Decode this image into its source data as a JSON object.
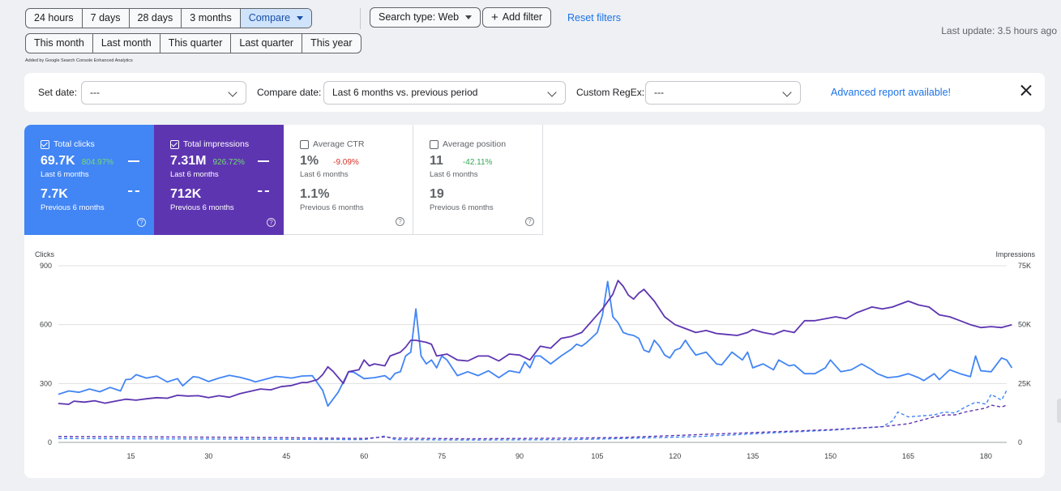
{
  "date_ranges": [
    "24 hours",
    "7 days",
    "28 days",
    "3 months"
  ],
  "compare_label": "Compare",
  "compare_ranges": [
    "This month",
    "Last month",
    "This quarter",
    "Last quarter",
    "This year"
  ],
  "search_type": "Search type: Web",
  "add_filter": "Add filter",
  "reset_filters": "Reset filters",
  "note": "Added by Google Search Console Enhanced Analytics",
  "last_update": "Last update: 3.5 hours ago",
  "filters": {
    "set_date_label": "Set date:",
    "set_date_value": "---",
    "compare_date_label": "Compare date:",
    "compare_date_value": "Last 6 months vs. previous period",
    "regex_label": "Custom RegEx:",
    "regex_value": "---",
    "advanced": "Advanced report available!"
  },
  "metrics": {
    "clicks": {
      "title": "Total clicks",
      "value": "69.7K",
      "pct": "804.97%",
      "period": "Last 6 months",
      "prev_value": "7.7K",
      "prev_period": "Previous 6 months"
    },
    "impressions": {
      "title": "Total impressions",
      "value": "7.31M",
      "pct": "926.72%",
      "period": "Last 6 months",
      "prev_value": "712K",
      "prev_period": "Previous 6 months"
    },
    "ctr": {
      "title": "Average CTR",
      "value": "1%",
      "pct": "-9.09%",
      "period": "Last 6 months",
      "prev_value": "1.1%",
      "prev_period": "Previous 6 months"
    },
    "position": {
      "title": "Average position",
      "value": "11",
      "pct": "-42.11%",
      "period": "Last 6 months",
      "prev_value": "19",
      "prev_period": "Previous 6 months"
    }
  },
  "colors": {
    "clicks": "#4285f4",
    "impressions": "#5e35b1",
    "accent": "#1a73e8"
  },
  "chart_data": {
    "type": "line",
    "ylabel_left": "Clicks",
    "ylabel_right": "Impressions",
    "y_ticks_left": [
      "0",
      "300",
      "600",
      "900"
    ],
    "y_ticks_right": [
      "0",
      "25K",
      "50K",
      "75K"
    ],
    "x_ticks": [
      "15",
      "30",
      "45",
      "60",
      "75",
      "90",
      "105",
      "120",
      "135",
      "150",
      "165",
      "180"
    ],
    "ylim_left": [
      0,
      900
    ],
    "ylim_right": [
      0,
      75000
    ],
    "xlim": [
      1,
      184
    ],
    "grid": true,
    "series": [
      {
        "name": "Clicks (Last 6 months)",
        "axis": "left",
        "style": "solid",
        "points": [
          [
            1,
            245
          ],
          [
            3,
            262
          ],
          [
            5,
            255
          ],
          [
            7,
            272
          ],
          [
            9,
            258
          ],
          [
            11,
            280
          ],
          [
            13,
            262
          ],
          [
            14,
            320
          ],
          [
            15,
            322
          ],
          [
            16,
            345
          ],
          [
            18,
            328
          ],
          [
            20,
            338
          ],
          [
            22,
            308
          ],
          [
            24,
            325
          ],
          [
            25,
            288
          ],
          [
            27,
            335
          ],
          [
            28,
            332
          ],
          [
            30,
            310
          ],
          [
            32,
            328
          ],
          [
            34,
            342
          ],
          [
            36,
            332
          ],
          [
            38,
            318
          ],
          [
            39,
            308
          ],
          [
            41,
            322
          ],
          [
            43,
            336
          ],
          [
            44,
            334
          ],
          [
            46,
            328
          ],
          [
            48,
            338
          ],
          [
            50,
            340
          ],
          [
            52,
            265
          ],
          [
            53,
            185
          ],
          [
            55,
            255
          ],
          [
            57,
            360
          ],
          [
            58,
            358
          ],
          [
            60,
            325
          ],
          [
            62,
            330
          ],
          [
            64,
            340
          ],
          [
            65,
            320
          ],
          [
            66,
            352
          ],
          [
            67,
            360
          ],
          [
            68,
            440
          ],
          [
            69,
            460
          ],
          [
            70,
            680
          ],
          [
            71,
            440
          ],
          [
            72,
            400
          ],
          [
            73,
            420
          ],
          [
            74,
            380
          ],
          [
            75,
            440
          ],
          [
            76,
            420
          ],
          [
            77,
            380
          ],
          [
            78,
            340
          ],
          [
            80,
            360
          ],
          [
            82,
            340
          ],
          [
            84,
            365
          ],
          [
            86,
            330
          ],
          [
            88,
            365
          ],
          [
            90,
            355
          ],
          [
            91,
            410
          ],
          [
            92,
            380
          ],
          [
            93,
            440
          ],
          [
            94,
            440
          ],
          [
            96,
            400
          ],
          [
            98,
            440
          ],
          [
            100,
            475
          ],
          [
            101,
            500
          ],
          [
            102,
            490
          ],
          [
            103,
            510
          ],
          [
            105,
            560
          ],
          [
            106,
            650
          ],
          [
            107,
            820
          ],
          [
            108,
            640
          ],
          [
            109,
            610
          ],
          [
            110,
            560
          ],
          [
            111,
            550
          ],
          [
            112,
            545
          ],
          [
            113,
            530
          ],
          [
            114,
            470
          ],
          [
            115,
            460
          ],
          [
            116,
            520
          ],
          [
            117,
            490
          ],
          [
            118,
            445
          ],
          [
            119,
            430
          ],
          [
            120,
            470
          ],
          [
            121,
            480
          ],
          [
            122,
            520
          ],
          [
            123,
            480
          ],
          [
            124,
            445
          ],
          [
            126,
            460
          ],
          [
            128,
            400
          ],
          [
            129,
            395
          ],
          [
            131,
            460
          ],
          [
            133,
            420
          ],
          [
            134,
            460
          ],
          [
            135,
            380
          ],
          [
            137,
            400
          ],
          [
            139,
            370
          ],
          [
            140,
            420
          ],
          [
            142,
            390
          ],
          [
            143,
            395
          ],
          [
            145,
            350
          ],
          [
            147,
            350
          ],
          [
            149,
            380
          ],
          [
            150,
            420
          ],
          [
            152,
            360
          ],
          [
            154,
            370
          ],
          [
            156,
            400
          ],
          [
            158,
            370
          ],
          [
            159,
            350
          ],
          [
            161,
            330
          ],
          [
            163,
            335
          ],
          [
            165,
            350
          ],
          [
            167,
            330
          ],
          [
            168,
            315
          ],
          [
            170,
            350
          ],
          [
            171,
            320
          ],
          [
            173,
            370
          ],
          [
            175,
            350
          ],
          [
            177,
            335
          ],
          [
            178,
            440
          ],
          [
            179,
            365
          ],
          [
            181,
            360
          ],
          [
            183,
            430
          ],
          [
            184,
            420
          ],
          [
            185,
            380
          ]
        ]
      },
      {
        "name": "Impressions (Last 6 months)",
        "axis": "left",
        "style": "solid",
        "points": [
          [
            1,
            198
          ],
          [
            3,
            194
          ],
          [
            4,
            210
          ],
          [
            6,
            205
          ],
          [
            8,
            212
          ],
          [
            10,
            200
          ],
          [
            12,
            210
          ],
          [
            14,
            220
          ],
          [
            16,
            215
          ],
          [
            18,
            222
          ],
          [
            20,
            228
          ],
          [
            22,
            225
          ],
          [
            24,
            240
          ],
          [
            26,
            236
          ],
          [
            28,
            238
          ],
          [
            30,
            228
          ],
          [
            32,
            238
          ],
          [
            34,
            230
          ],
          [
            36,
            248
          ],
          [
            38,
            260
          ],
          [
            40,
            272
          ],
          [
            42,
            268
          ],
          [
            44,
            284
          ],
          [
            46,
            290
          ],
          [
            48,
            305
          ],
          [
            49,
            305
          ],
          [
            51,
            320
          ],
          [
            52,
            345
          ],
          [
            53,
            385
          ],
          [
            54,
            362
          ],
          [
            56,
            300
          ],
          [
            57,
            360
          ],
          [
            59,
            370
          ],
          [
            60,
            420
          ],
          [
            61,
            390
          ],
          [
            62,
            400
          ],
          [
            64,
            390
          ],
          [
            65,
            440
          ],
          [
            67,
            460
          ],
          [
            68,
            485
          ],
          [
            69,
            520
          ],
          [
            70,
            520
          ],
          [
            72,
            510
          ],
          [
            73,
            500
          ],
          [
            74,
            440
          ],
          [
            76,
            450
          ],
          [
            78,
            420
          ],
          [
            80,
            415
          ],
          [
            82,
            440
          ],
          [
            84,
            440
          ],
          [
            86,
            415
          ],
          [
            88,
            450
          ],
          [
            90,
            445
          ],
          [
            92,
            420
          ],
          [
            94,
            490
          ],
          [
            96,
            480
          ],
          [
            98,
            530
          ],
          [
            100,
            540
          ],
          [
            102,
            560
          ],
          [
            104,
            620
          ],
          [
            106,
            680
          ],
          [
            108,
            755
          ],
          [
            109,
            825
          ],
          [
            110,
            795
          ],
          [
            111,
            750
          ],
          [
            112,
            730
          ],
          [
            113,
            760
          ],
          [
            114,
            780
          ],
          [
            116,
            720
          ],
          [
            118,
            640
          ],
          [
            120,
            600
          ],
          [
            122,
            580
          ],
          [
            124,
            560
          ],
          [
            126,
            570
          ],
          [
            128,
            555
          ],
          [
            130,
            550
          ],
          [
            132,
            545
          ],
          [
            134,
            560
          ],
          [
            135,
            575
          ],
          [
            137,
            560
          ],
          [
            139,
            550
          ],
          [
            141,
            570
          ],
          [
            143,
            560
          ],
          [
            145,
            620
          ],
          [
            147,
            620
          ],
          [
            149,
            630
          ],
          [
            151,
            640
          ],
          [
            153,
            630
          ],
          [
            155,
            660
          ],
          [
            157,
            680
          ],
          [
            158,
            690
          ],
          [
            160,
            680
          ],
          [
            162,
            690
          ],
          [
            163,
            700
          ],
          [
            165,
            720
          ],
          [
            167,
            700
          ],
          [
            169,
            690
          ],
          [
            171,
            650
          ],
          [
            173,
            640
          ],
          [
            175,
            620
          ],
          [
            177,
            600
          ],
          [
            179,
            585
          ],
          [
            181,
            590
          ],
          [
            183,
            585
          ],
          [
            185,
            600
          ]
        ]
      }
    ],
    "compare_series": [
      {
        "name": "Clicks (Previous 6 months)",
        "axis": "left",
        "style": "dashed",
        "points": [
          [
            1,
            20
          ],
          [
            20,
            18
          ],
          [
            40,
            16
          ],
          [
            60,
            14
          ],
          [
            64,
            32
          ],
          [
            66,
            14
          ],
          [
            80,
            12
          ],
          [
            100,
            14
          ],
          [
            110,
            20
          ],
          [
            125,
            30
          ],
          [
            140,
            50
          ],
          [
            150,
            62
          ],
          [
            160,
            80
          ],
          [
            162,
            110
          ],
          [
            163,
            155
          ],
          [
            165,
            130
          ],
          [
            170,
            140
          ],
          [
            172,
            155
          ],
          [
            174,
            150
          ],
          [
            176,
            180
          ],
          [
            178,
            205
          ],
          [
            180,
            195
          ],
          [
            181,
            245
          ],
          [
            183,
            215
          ],
          [
            184,
            265
          ]
        ]
      },
      {
        "name": "Impressions (Previous 6 months)",
        "axis": "left",
        "style": "dashed",
        "points": [
          [
            1,
            30
          ],
          [
            20,
            28
          ],
          [
            40,
            25
          ],
          [
            60,
            20
          ],
          [
            64,
            28
          ],
          [
            66,
            22
          ],
          [
            80,
            18
          ],
          [
            100,
            22
          ],
          [
            110,
            25
          ],
          [
            125,
            40
          ],
          [
            140,
            55
          ],
          [
            150,
            65
          ],
          [
            160,
            80
          ],
          [
            165,
            95
          ],
          [
            170,
            130
          ],
          [
            172,
            140
          ],
          [
            174,
            140
          ],
          [
            176,
            155
          ],
          [
            178,
            165
          ],
          [
            180,
            175
          ],
          [
            181,
            190
          ],
          [
            183,
            180
          ],
          [
            184,
            190
          ]
        ]
      }
    ]
  }
}
